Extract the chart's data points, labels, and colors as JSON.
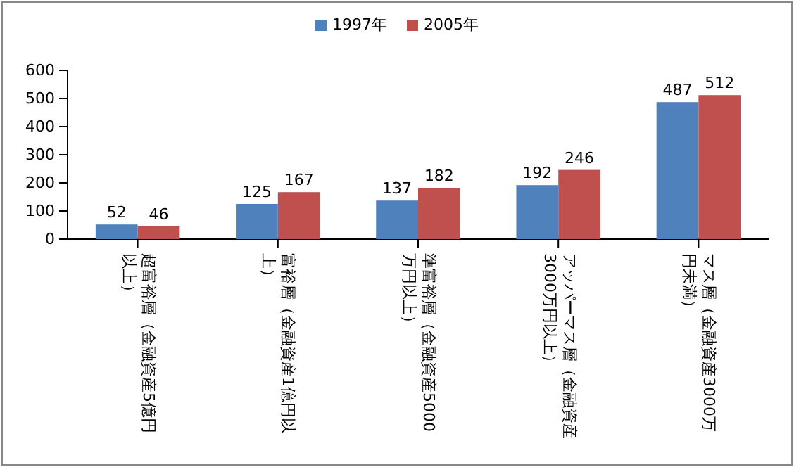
{
  "chart_data": {
    "type": "bar",
    "categories": [
      "超富裕層（金融資産5億円以上）",
      "富裕層（金融資産1億円以上）",
      "準富裕層（金融資産5000万円以上）",
      "アッパーマス層（金融資産3000万円以上）",
      "マス層（金融資産3000万円未満）"
    ],
    "series": [
      {
        "name": "1997年",
        "color": "#4f81bd",
        "values": [
          52,
          125,
          137,
          192,
          487
        ]
      },
      {
        "name": "2005年",
        "color": "#c0504d",
        "values": [
          46,
          167,
          182,
          246,
          512
        ]
      }
    ],
    "ylim": [
      0,
      600
    ],
    "yticks": [
      0,
      100,
      200,
      300,
      400,
      500,
      600
    ],
    "grid": false,
    "legend": "top",
    "data_labels": true
  }
}
